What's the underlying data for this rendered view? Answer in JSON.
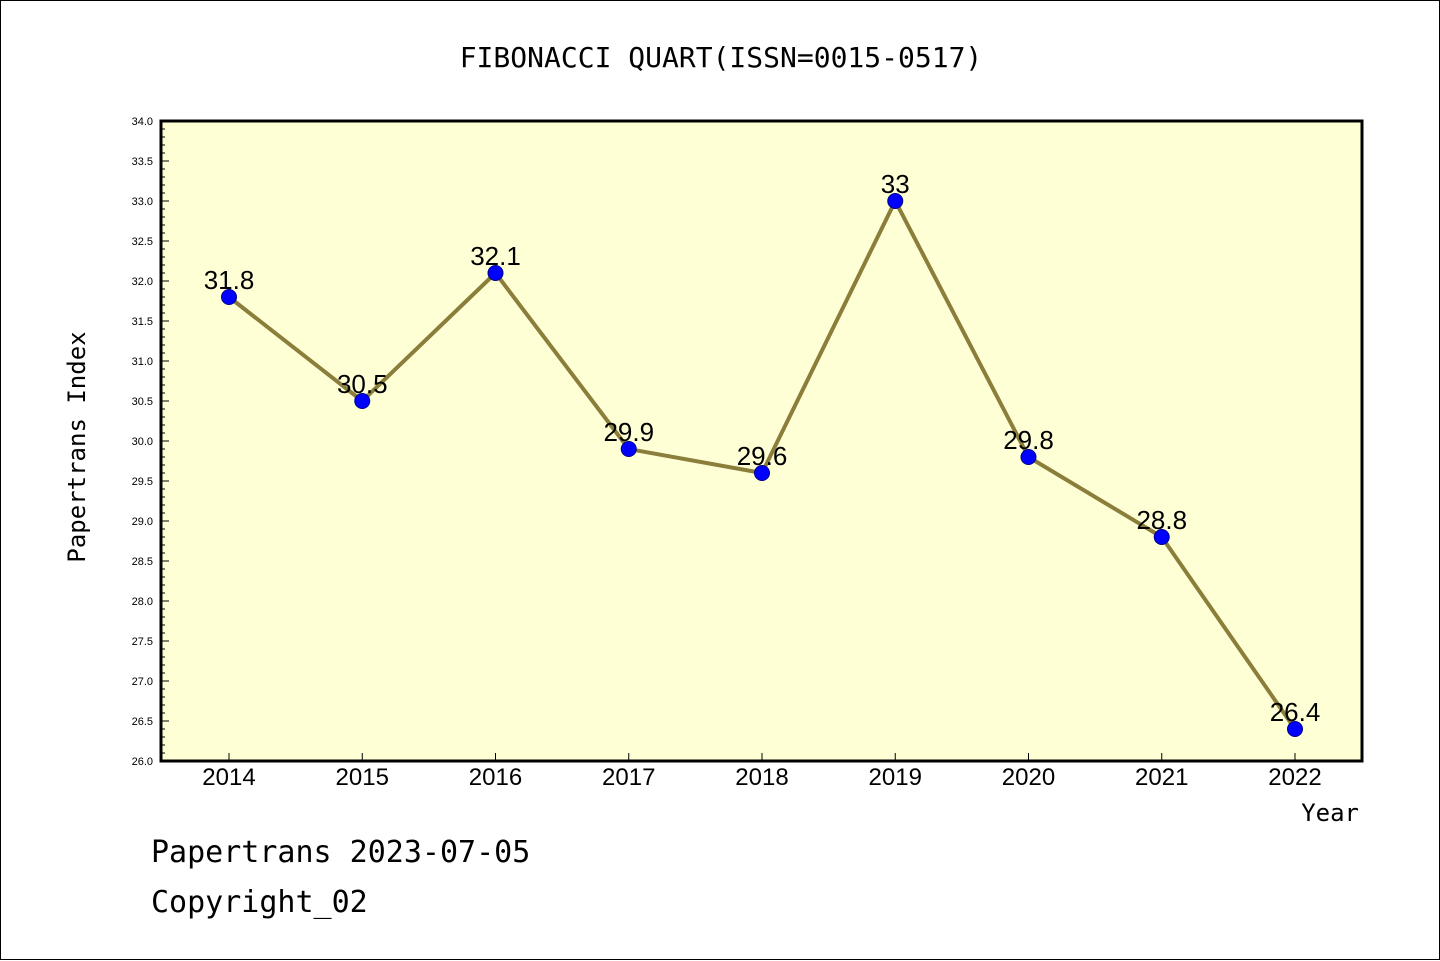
{
  "chart_data": {
    "type": "line",
    "title": "FIBONACCI QUART(ISSN=0015-0517)",
    "xlabel": "Year",
    "ylabel": "Papertrans Index",
    "categories": [
      "2014",
      "2015",
      "2016",
      "2017",
      "2018",
      "2019",
      "2020",
      "2021",
      "2022"
    ],
    "values": [
      31.8,
      30.5,
      32.1,
      29.9,
      29.6,
      33,
      29.8,
      28.8,
      26.4
    ],
    "data_labels": [
      "31.8",
      "30.5",
      "32.1",
      "29.9",
      "29.6",
      "33",
      "29.8",
      "28.8",
      "26.4"
    ],
    "ylim": [
      26.0,
      34.0
    ],
    "yticks": [
      "26.0",
      "26.5",
      "27.0",
      "27.5",
      "28.0",
      "28.5",
      "29.0",
      "29.5",
      "30.0",
      "30.5",
      "31.0",
      "31.5",
      "32.0",
      "32.5",
      "33.0",
      "33.5",
      "34.0"
    ],
    "grid": false,
    "plot_background": "#ffffd6",
    "line_color": "#8b7d3a",
    "marker_color": "#0000ff"
  },
  "footer": {
    "date_line": "Papertrans 2023-07-05",
    "copyright": "Copyright_02"
  }
}
